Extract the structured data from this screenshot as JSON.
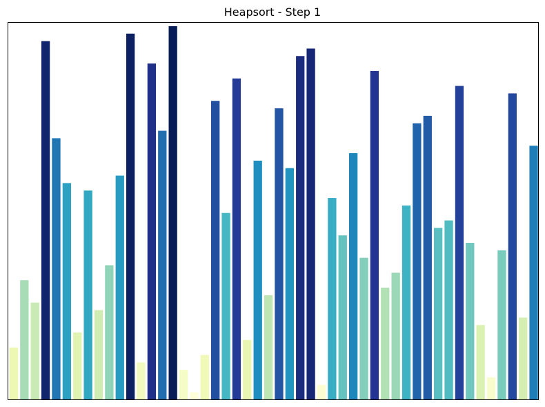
{
  "chart_data": {
    "type": "bar",
    "title": "Heapsort - Step 1",
    "xlabel": "",
    "ylabel": "",
    "axes_ticks": "hidden",
    "grid": false,
    "colormap": "YlGnBu",
    "colormap_stops": [
      "#ffffd9",
      "#edf8b1",
      "#c7e9b4",
      "#7fcdbb",
      "#41b6c4",
      "#1d91c0",
      "#225ea8",
      "#253494",
      "#081d58"
    ],
    "values": [
      7,
      16,
      13,
      48,
      35,
      29,
      9,
      28,
      12,
      18,
      30,
      49,
      5,
      45,
      36,
      50,
      4,
      1,
      6,
      40,
      25,
      43,
      8,
      32,
      14,
      39,
      31,
      46,
      47,
      2,
      27,
      22,
      33,
      19,
      44,
      15,
      17,
      26,
      37,
      38,
      23,
      24,
      42,
      21,
      10,
      3,
      20,
      41,
      11,
      34
    ],
    "ylim": [
      0,
      50.5
    ]
  }
}
